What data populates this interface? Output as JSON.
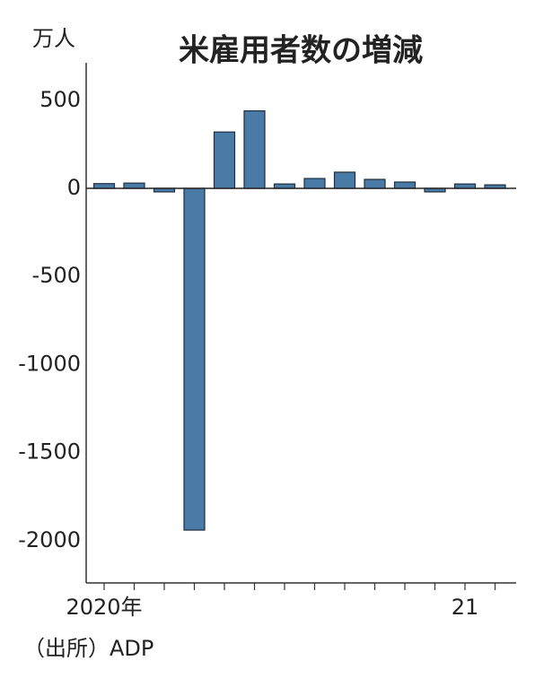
{
  "chart_data": {
    "type": "bar",
    "title": "米雇用者数の増減",
    "y_unit": "万人",
    "source": "（出所）ADP",
    "categories": [
      "2020年",
      null,
      null,
      null,
      null,
      null,
      null,
      null,
      null,
      null,
      null,
      null,
      "21",
      null
    ],
    "values": [
      27,
      30,
      -20,
      -1940,
      320,
      440,
      25,
      56,
      92,
      51,
      36,
      -20,
      25,
      20
    ],
    "color": "#4a7ba6",
    "ylim": [
      -2240,
      713
    ],
    "yticks": [
      500,
      0,
      -500,
      -1000,
      -1500,
      -2000
    ]
  }
}
